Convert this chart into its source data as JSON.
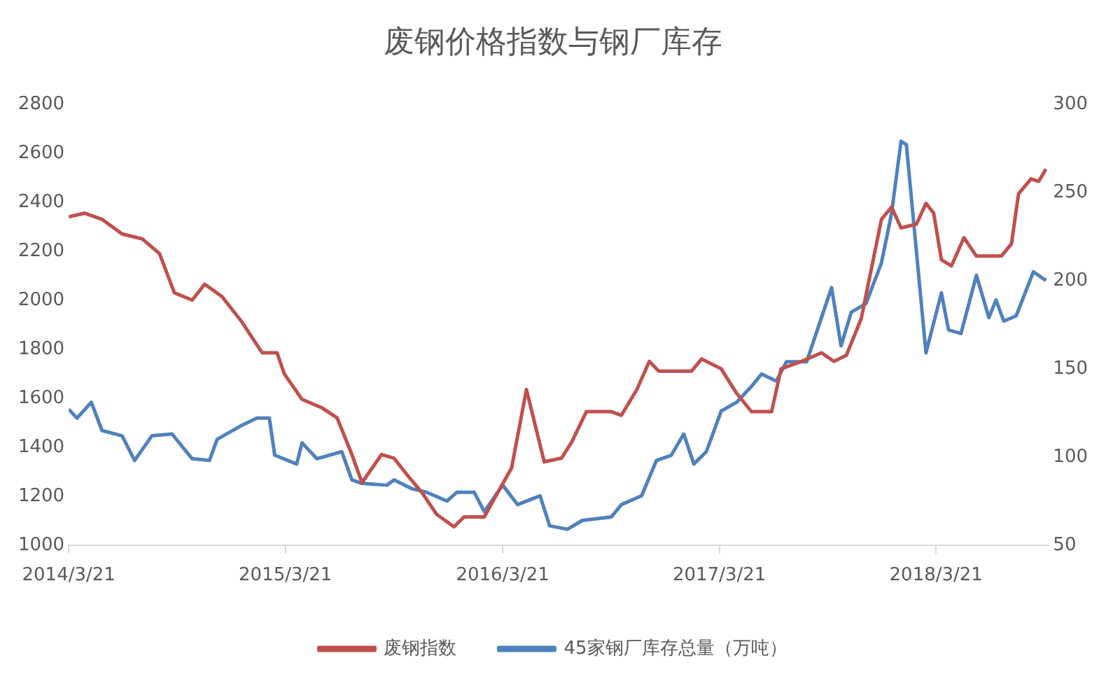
{
  "chart_data": {
    "type": "line",
    "title": "废钢价格指数与钢厂库存",
    "legend": "bottom",
    "grid": false,
    "marker": "none",
    "line_style": "solid",
    "xlim": [
      "2014-03-21",
      "2018-09-27"
    ],
    "xticks": [
      {
        "value": "2014-03-21",
        "label": "2014/3/21"
      },
      {
        "value": "2015-03-21",
        "label": "2015/3/21"
      },
      {
        "value": "2016-03-21",
        "label": "2016/3/21"
      },
      {
        "value": "2017-03-21",
        "label": "2017/3/21"
      },
      {
        "value": "2018-03-21",
        "label": "2018/3/21"
      }
    ],
    "ylim": [
      1000,
      2800
    ],
    "yticks": [
      1000,
      1200,
      1400,
      1600,
      1800,
      2000,
      2200,
      2400,
      2600,
      2800
    ],
    "y2lim": [
      50,
      300
    ],
    "y2ticks": [
      50,
      100,
      150,
      200,
      250,
      300
    ],
    "series": [
      {
        "name": "废钢指数",
        "color": "#c0504d",
        "x": [
          "2014-03-21",
          "2014-04-17",
          "2014-05-16",
          "2014-06-19",
          "2014-07-23",
          "2014-08-21",
          "2014-09-15",
          "2014-10-15",
          "2014-11-05",
          "2014-12-04",
          "2015-01-07",
          "2015-02-10",
          "2015-03-07",
          "2015-03-19",
          "2015-04-18",
          "2015-05-22",
          "2015-06-16",
          "2015-07-11",
          "2015-07-28",
          "2015-08-30",
          "2015-09-20",
          "2015-10-11",
          "2015-11-06",
          "2015-12-01",
          "2015-12-30",
          "2016-01-16",
          "2016-02-19",
          "2016-03-07",
          "2016-04-05",
          "2016-04-30",
          "2016-05-30",
          "2016-06-28",
          "2016-07-15",
          "2016-08-09",
          "2016-09-20",
          "2016-10-07",
          "2016-11-02",
          "2016-11-23",
          "2016-12-09",
          "2017-02-02",
          "2017-02-19",
          "2017-03-24",
          "2017-04-19",
          "2017-05-14",
          "2017-06-17",
          "2017-07-03",
          "2017-08-06",
          "2017-09-09",
          "2017-09-30",
          "2017-10-21",
          "2017-11-15",
          "2017-12-19",
          "2018-01-05",
          "2018-01-21",
          "2018-02-16",
          "2018-03-04",
          "2018-03-17",
          "2018-03-30",
          "2018-04-16",
          "2018-05-07",
          "2018-05-28",
          "2018-07-09",
          "2018-07-26",
          "2018-08-07",
          "2018-08-28",
          "2018-09-10",
          "2018-09-22"
        ],
        "values": [
          2340,
          2355,
          2330,
          2270,
          2250,
          2190,
          2030,
          2000,
          2065,
          2015,
          1910,
          1785,
          1785,
          1700,
          1595,
          1560,
          1520,
          1370,
          1255,
          1370,
          1355,
          1290,
          1215,
          1125,
          1075,
          1115,
          1115,
          1190,
          1315,
          1635,
          1340,
          1355,
          1420,
          1545,
          1545,
          1530,
          1635,
          1750,
          1710,
          1710,
          1760,
          1720,
          1620,
          1545,
          1545,
          1720,
          1750,
          1785,
          1750,
          1775,
          1925,
          2330,
          2380,
          2295,
          2310,
          2395,
          2355,
          2165,
          2140,
          2255,
          2180,
          2180,
          2230,
          2435,
          2495,
          2485,
          2535
        ]
      },
      {
        "name": "45家钢厂库存总量（万吨）",
        "color": "#4f81bd",
        "axis": "y2",
        "x": [
          "2014-03-21",
          "2014-04-04",
          "2014-04-28",
          "2014-05-16",
          "2014-06-19",
          "2014-07-10",
          "2014-08-08",
          "2014-09-11",
          "2014-10-15",
          "2014-11-13",
          "2014-11-26",
          "2015-01-07",
          "2015-02-01",
          "2015-02-22",
          "2015-03-03",
          "2015-04-09",
          "2015-04-18",
          "2015-05-13",
          "2015-06-24",
          "2015-07-11",
          "2015-07-28",
          "2015-09-08",
          "2015-09-20",
          "2015-10-20",
          "2015-11-14",
          "2015-12-18",
          "2016-01-04",
          "2016-02-02",
          "2016-02-19",
          "2016-03-21",
          "2016-04-15",
          "2016-05-23",
          "2016-06-08",
          "2016-07-08",
          "2016-08-02",
          "2016-09-20",
          "2016-10-07",
          "2016-11-10",
          "2016-12-05",
          "2016-12-30",
          "2017-01-20",
          "2017-02-06",
          "2017-02-27",
          "2017-03-24",
          "2017-04-19",
          "2017-05-14",
          "2017-05-31",
          "2017-06-25",
          "2017-07-12",
          "2017-08-15",
          "2017-08-31",
          "2017-09-26",
          "2017-10-12",
          "2017-10-29",
          "2017-11-23",
          "2017-12-19",
          "2018-01-05",
          "2018-01-21",
          "2018-01-30",
          "2018-03-04",
          "2018-03-30",
          "2018-04-11",
          "2018-05-02",
          "2018-05-28",
          "2018-06-18",
          "2018-06-30",
          "2018-07-13",
          "2018-08-03",
          "2018-09-01",
          "2018-09-22"
        ],
        "values": [
          127,
          122,
          131,
          115,
          112,
          98,
          112,
          113,
          99,
          98,
          110,
          118,
          122,
          122,
          101,
          96,
          108,
          99,
          103,
          87,
          85,
          84,
          87,
          82,
          80,
          75,
          80,
          80,
          69,
          84,
          73,
          78,
          61,
          59,
          64,
          66,
          73,
          78,
          98,
          101,
          113,
          96,
          103,
          126,
          131,
          140,
          147,
          143,
          154,
          154,
          170,
          196,
          163,
          182,
          187,
          210,
          238,
          279,
          277,
          159,
          193,
          172,
          170,
          203,
          179,
          189,
          177,
          180,
          205,
          200
        ]
      }
    ]
  }
}
